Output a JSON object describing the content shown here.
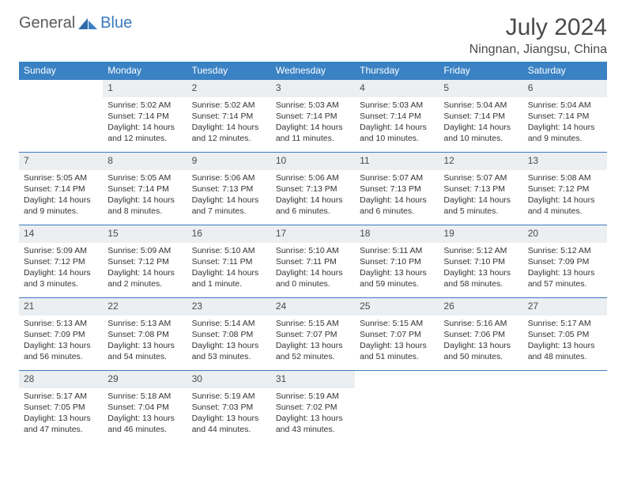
{
  "brand": {
    "general": "General",
    "blue": "Blue"
  },
  "title": "July 2024",
  "location": "Ningnan, Jiangsu, China",
  "colors": {
    "header_bg": "#3a82c4",
    "header_text": "#ffffff",
    "daynum_bg": "#eceff1",
    "rule": "#3a7bbf",
    "body_text": "#333333",
    "title_text": "#4a4a4a",
    "logo_gray": "#5a5a5a",
    "logo_blue": "#3a7bbf",
    "page_bg": "#ffffff"
  },
  "weekdays": [
    "Sunday",
    "Monday",
    "Tuesday",
    "Wednesday",
    "Thursday",
    "Friday",
    "Saturday"
  ],
  "first_weekday_index": 1,
  "days": [
    {
      "n": 1,
      "sunrise": "5:02 AM",
      "sunset": "7:14 PM",
      "daylight": "14 hours and 12 minutes."
    },
    {
      "n": 2,
      "sunrise": "5:02 AM",
      "sunset": "7:14 PM",
      "daylight": "14 hours and 12 minutes."
    },
    {
      "n": 3,
      "sunrise": "5:03 AM",
      "sunset": "7:14 PM",
      "daylight": "14 hours and 11 minutes."
    },
    {
      "n": 4,
      "sunrise": "5:03 AM",
      "sunset": "7:14 PM",
      "daylight": "14 hours and 10 minutes."
    },
    {
      "n": 5,
      "sunrise": "5:04 AM",
      "sunset": "7:14 PM",
      "daylight": "14 hours and 10 minutes."
    },
    {
      "n": 6,
      "sunrise": "5:04 AM",
      "sunset": "7:14 PM",
      "daylight": "14 hours and 9 minutes."
    },
    {
      "n": 7,
      "sunrise": "5:05 AM",
      "sunset": "7:14 PM",
      "daylight": "14 hours and 9 minutes."
    },
    {
      "n": 8,
      "sunrise": "5:05 AM",
      "sunset": "7:14 PM",
      "daylight": "14 hours and 8 minutes."
    },
    {
      "n": 9,
      "sunrise": "5:06 AM",
      "sunset": "7:13 PM",
      "daylight": "14 hours and 7 minutes."
    },
    {
      "n": 10,
      "sunrise": "5:06 AM",
      "sunset": "7:13 PM",
      "daylight": "14 hours and 6 minutes."
    },
    {
      "n": 11,
      "sunrise": "5:07 AM",
      "sunset": "7:13 PM",
      "daylight": "14 hours and 6 minutes."
    },
    {
      "n": 12,
      "sunrise": "5:07 AM",
      "sunset": "7:13 PM",
      "daylight": "14 hours and 5 minutes."
    },
    {
      "n": 13,
      "sunrise": "5:08 AM",
      "sunset": "7:12 PM",
      "daylight": "14 hours and 4 minutes."
    },
    {
      "n": 14,
      "sunrise": "5:09 AM",
      "sunset": "7:12 PM",
      "daylight": "14 hours and 3 minutes."
    },
    {
      "n": 15,
      "sunrise": "5:09 AM",
      "sunset": "7:12 PM",
      "daylight": "14 hours and 2 minutes."
    },
    {
      "n": 16,
      "sunrise": "5:10 AM",
      "sunset": "7:11 PM",
      "daylight": "14 hours and 1 minute."
    },
    {
      "n": 17,
      "sunrise": "5:10 AM",
      "sunset": "7:11 PM",
      "daylight": "14 hours and 0 minutes."
    },
    {
      "n": 18,
      "sunrise": "5:11 AM",
      "sunset": "7:10 PM",
      "daylight": "13 hours and 59 minutes."
    },
    {
      "n": 19,
      "sunrise": "5:12 AM",
      "sunset": "7:10 PM",
      "daylight": "13 hours and 58 minutes."
    },
    {
      "n": 20,
      "sunrise": "5:12 AM",
      "sunset": "7:09 PM",
      "daylight": "13 hours and 57 minutes."
    },
    {
      "n": 21,
      "sunrise": "5:13 AM",
      "sunset": "7:09 PM",
      "daylight": "13 hours and 56 minutes."
    },
    {
      "n": 22,
      "sunrise": "5:13 AM",
      "sunset": "7:08 PM",
      "daylight": "13 hours and 54 minutes."
    },
    {
      "n": 23,
      "sunrise": "5:14 AM",
      "sunset": "7:08 PM",
      "daylight": "13 hours and 53 minutes."
    },
    {
      "n": 24,
      "sunrise": "5:15 AM",
      "sunset": "7:07 PM",
      "daylight": "13 hours and 52 minutes."
    },
    {
      "n": 25,
      "sunrise": "5:15 AM",
      "sunset": "7:07 PM",
      "daylight": "13 hours and 51 minutes."
    },
    {
      "n": 26,
      "sunrise": "5:16 AM",
      "sunset": "7:06 PM",
      "daylight": "13 hours and 50 minutes."
    },
    {
      "n": 27,
      "sunrise": "5:17 AM",
      "sunset": "7:05 PM",
      "daylight": "13 hours and 48 minutes."
    },
    {
      "n": 28,
      "sunrise": "5:17 AM",
      "sunset": "7:05 PM",
      "daylight": "13 hours and 47 minutes."
    },
    {
      "n": 29,
      "sunrise": "5:18 AM",
      "sunset": "7:04 PM",
      "daylight": "13 hours and 46 minutes."
    },
    {
      "n": 30,
      "sunrise": "5:19 AM",
      "sunset": "7:03 PM",
      "daylight": "13 hours and 44 minutes."
    },
    {
      "n": 31,
      "sunrise": "5:19 AM",
      "sunset": "7:02 PM",
      "daylight": "13 hours and 43 minutes."
    }
  ],
  "labels": {
    "sunrise": "Sunrise: ",
    "sunset": "Sunset: ",
    "daylight": "Daylight: "
  }
}
